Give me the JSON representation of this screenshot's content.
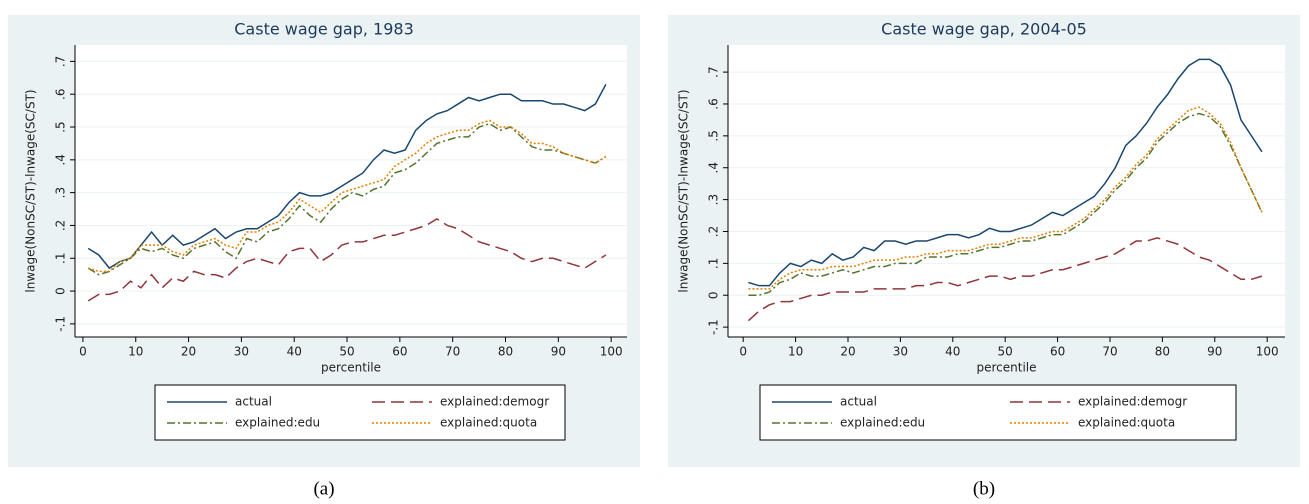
{
  "chart_data": [
    {
      "type": "line",
      "title": "Caste wage gap, 1983",
      "caption": "(a)",
      "xlabel": "percentile",
      "ylabel": "lnwage(NonSC/ST)-lnwage(SC/ST)",
      "x": [
        1,
        3,
        5,
        7,
        9,
        11,
        13,
        15,
        17,
        19,
        21,
        23,
        25,
        27,
        29,
        31,
        33,
        35,
        37,
        39,
        41,
        43,
        45,
        47,
        49,
        51,
        53,
        55,
        57,
        59,
        61,
        63,
        65,
        67,
        69,
        71,
        73,
        75,
        77,
        79,
        81,
        83,
        85,
        87,
        89,
        91,
        93,
        95,
        97,
        99
      ],
      "xlim": [
        -1.5,
        103
      ],
      "xticks": [
        0,
        10,
        20,
        30,
        40,
        50,
        60,
        70,
        80,
        90,
        100
      ],
      "ylim": [
        -0.14,
        0.75
      ],
      "yticks": [
        {
          "value": -0.1,
          "label": "-.1"
        },
        0,
        {
          "value": 0.1,
          "label": ".1"
        },
        {
          "value": 0.2,
          "label": ".2"
        },
        {
          "value": 0.3,
          "label": ".3"
        },
        {
          "value": 0.4,
          "label": ".4"
        },
        {
          "value": 0.5,
          "label": ".5"
        },
        {
          "value": 0.6,
          "label": ".6"
        },
        {
          "value": 0.7,
          "label": ".7"
        }
      ],
      "grid": true,
      "legend": "bottom",
      "series": [
        {
          "name": "actual",
          "color": "#1a476f",
          "dash": "solid",
          "values": [
            0.13,
            0.11,
            0.07,
            0.09,
            0.1,
            0.14,
            0.18,
            0.14,
            0.17,
            0.14,
            0.15,
            0.17,
            0.19,
            0.16,
            0.18,
            0.19,
            0.19,
            0.21,
            0.23,
            0.27,
            0.3,
            0.29,
            0.29,
            0.3,
            0.32,
            0.34,
            0.36,
            0.4,
            0.43,
            0.42,
            0.43,
            0.49,
            0.52,
            0.54,
            0.55,
            0.57,
            0.59,
            0.58,
            0.59,
            0.6,
            0.6,
            0.58,
            0.58,
            0.58,
            0.57,
            0.57,
            0.56,
            0.55,
            0.57,
            0.63
          ]
        },
        {
          "name": "explained:demogr",
          "color": "#90353b",
          "dash": "longdash",
          "values": [
            -0.03,
            -0.01,
            -0.01,
            0.0,
            0.03,
            0.01,
            0.05,
            0.01,
            0.04,
            0.03,
            0.06,
            0.05,
            0.05,
            0.04,
            0.07,
            0.09,
            0.1,
            0.09,
            0.08,
            0.12,
            0.13,
            0.13,
            0.09,
            0.11,
            0.14,
            0.15,
            0.15,
            0.16,
            0.17,
            0.17,
            0.18,
            0.19,
            0.2,
            0.22,
            0.2,
            0.19,
            0.17,
            0.15,
            0.14,
            0.13,
            0.12,
            0.1,
            0.09,
            0.1,
            0.1,
            0.09,
            0.08,
            0.07,
            0.09,
            0.11
          ]
        },
        {
          "name": "explained:edu",
          "color": "#55752f",
          "dash": "dashdot",
          "values": [
            0.07,
            0.05,
            0.06,
            0.08,
            0.1,
            0.13,
            0.12,
            0.13,
            0.11,
            0.1,
            0.13,
            0.14,
            0.15,
            0.12,
            0.1,
            0.16,
            0.15,
            0.18,
            0.19,
            0.22,
            0.26,
            0.23,
            0.21,
            0.25,
            0.28,
            0.3,
            0.29,
            0.31,
            0.32,
            0.36,
            0.37,
            0.39,
            0.42,
            0.45,
            0.46,
            0.47,
            0.47,
            0.5,
            0.51,
            0.49,
            0.5,
            0.47,
            0.44,
            0.43,
            0.43,
            0.42,
            0.41,
            0.4,
            0.39,
            0.41
          ]
        },
        {
          "name": "explained:quota",
          "color": "#e37e00",
          "dash": "dot",
          "values": [
            0.07,
            0.06,
            0.06,
            0.09,
            0.1,
            0.14,
            0.14,
            0.14,
            0.12,
            0.11,
            0.14,
            0.15,
            0.16,
            0.14,
            0.13,
            0.18,
            0.18,
            0.2,
            0.21,
            0.24,
            0.28,
            0.26,
            0.24,
            0.27,
            0.3,
            0.31,
            0.32,
            0.33,
            0.34,
            0.38,
            0.4,
            0.42,
            0.45,
            0.47,
            0.48,
            0.49,
            0.49,
            0.51,
            0.52,
            0.5,
            0.5,
            0.48,
            0.45,
            0.45,
            0.44,
            0.42,
            0.41,
            0.4,
            0.39,
            0.41
          ]
        }
      ]
    },
    {
      "type": "line",
      "title": "Caste wage gap, 2004-05",
      "caption": "(b)",
      "xlabel": "percentile",
      "ylabel": "lnwage(NonSC/ST)-lnwage(SC/ST)",
      "x": [
        1,
        3,
        5,
        7,
        9,
        11,
        13,
        15,
        17,
        19,
        21,
        23,
        25,
        27,
        29,
        31,
        33,
        35,
        37,
        39,
        41,
        43,
        45,
        47,
        49,
        51,
        53,
        55,
        57,
        59,
        61,
        63,
        65,
        67,
        69,
        71,
        73,
        75,
        77,
        79,
        81,
        83,
        85,
        87,
        89,
        91,
        93,
        95,
        97,
        99
      ],
      "xlim": [
        -2.9,
        103.4
      ],
      "xticks": [
        0,
        10,
        20,
        30,
        40,
        50,
        60,
        70,
        80,
        90,
        100
      ],
      "ylim": [
        -0.131,
        0.785
      ],
      "yticks": [
        {
          "value": -0.1,
          "label": "-.1"
        },
        0,
        {
          "value": 0.1,
          "label": ".1"
        },
        {
          "value": 0.2,
          "label": ".2"
        },
        {
          "value": 0.3,
          "label": ".3"
        },
        {
          "value": 0.4,
          "label": ".4"
        },
        {
          "value": 0.5,
          "label": ".5"
        },
        {
          "value": 0.6,
          "label": ".6"
        },
        {
          "value": 0.7,
          "label": ".7"
        }
      ],
      "grid": true,
      "legend": "bottom",
      "series": [
        {
          "name": "actual",
          "color": "#1a476f",
          "dash": "solid",
          "values": [
            0.04,
            0.03,
            0.03,
            0.07,
            0.1,
            0.09,
            0.11,
            0.1,
            0.13,
            0.11,
            0.12,
            0.15,
            0.14,
            0.17,
            0.17,
            0.16,
            0.17,
            0.17,
            0.18,
            0.19,
            0.19,
            0.18,
            0.19,
            0.21,
            0.2,
            0.2,
            0.21,
            0.22,
            0.24,
            0.26,
            0.25,
            0.27,
            0.29,
            0.31,
            0.35,
            0.4,
            0.47,
            0.5,
            0.54,
            0.59,
            0.63,
            0.68,
            0.72,
            0.74,
            0.74,
            0.72,
            0.66,
            0.55,
            0.5,
            0.45
          ]
        },
        {
          "name": "explained:demogr",
          "color": "#90353b",
          "dash": "longdash",
          "values": [
            -0.08,
            -0.05,
            -0.03,
            -0.02,
            -0.02,
            -0.01,
            0.0,
            0.0,
            0.01,
            0.01,
            0.01,
            0.01,
            0.02,
            0.02,
            0.02,
            0.02,
            0.03,
            0.03,
            0.04,
            0.04,
            0.03,
            0.04,
            0.05,
            0.06,
            0.06,
            0.05,
            0.06,
            0.06,
            0.07,
            0.08,
            0.08,
            0.09,
            0.1,
            0.11,
            0.12,
            0.13,
            0.15,
            0.17,
            0.17,
            0.18,
            0.17,
            0.16,
            0.14,
            0.12,
            0.11,
            0.09,
            0.07,
            0.05,
            0.05,
            0.06
          ]
        },
        {
          "name": "explained:edu",
          "color": "#55752f",
          "dash": "dashdot",
          "values": [
            0.0,
            0.0,
            0.01,
            0.04,
            0.05,
            0.07,
            0.06,
            0.06,
            0.07,
            0.08,
            0.07,
            0.08,
            0.09,
            0.09,
            0.1,
            0.1,
            0.1,
            0.12,
            0.12,
            0.12,
            0.13,
            0.13,
            0.14,
            0.15,
            0.15,
            0.16,
            0.17,
            0.17,
            0.18,
            0.19,
            0.19,
            0.21,
            0.23,
            0.26,
            0.29,
            0.33,
            0.36,
            0.4,
            0.43,
            0.48,
            0.51,
            0.54,
            0.56,
            0.57,
            0.56,
            0.53,
            0.47,
            0.4,
            0.33,
            0.26
          ]
        },
        {
          "name": "explained:quota",
          "color": "#e37e00",
          "dash": "dot",
          "values": [
            0.02,
            0.02,
            0.02,
            0.05,
            0.07,
            0.08,
            0.08,
            0.08,
            0.09,
            0.09,
            0.09,
            0.1,
            0.11,
            0.11,
            0.11,
            0.12,
            0.12,
            0.13,
            0.13,
            0.14,
            0.14,
            0.14,
            0.15,
            0.16,
            0.16,
            0.17,
            0.18,
            0.18,
            0.19,
            0.2,
            0.2,
            0.22,
            0.24,
            0.27,
            0.3,
            0.34,
            0.37,
            0.41,
            0.44,
            0.49,
            0.52,
            0.55,
            0.58,
            0.59,
            0.57,
            0.54,
            0.48,
            0.4,
            0.33,
            0.26
          ]
        }
      ]
    }
  ]
}
